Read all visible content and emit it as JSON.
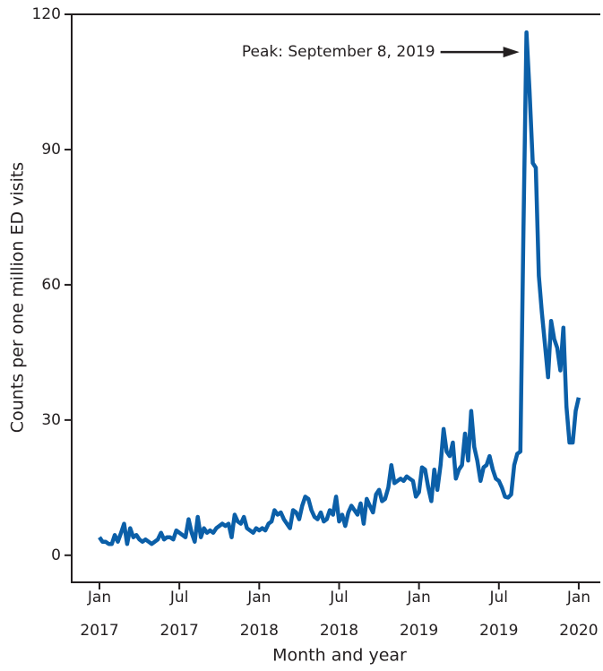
{
  "chart_data": {
    "type": "line",
    "xlabel": "Month and year",
    "ylabel": "Counts per one million ED visits",
    "annotation": "Peak: September 8, 2019",
    "xlim": [
      2016.826,
      2020.135
    ],
    "ylim": [
      -6,
      120
    ],
    "yticks": [
      0,
      30,
      60,
      90,
      120
    ],
    "xticks": [
      {
        "value": 2017,
        "label": "Jan 2017"
      },
      {
        "value": 2017.5,
        "label": "Jul 2017"
      },
      {
        "value": 2018,
        "label": "Jan 2018"
      },
      {
        "value": 2018.5,
        "label": "Jul 2018"
      },
      {
        "value": 2019,
        "label": "Jan 2019"
      },
      {
        "value": 2019.5,
        "label": "Jul 2019"
      },
      {
        "value": 2020,
        "label": "Jan 2020"
      }
    ],
    "series": [
      {
        "color": "#0b5fa8",
        "x": [
          2017,
          2017.019,
          2017.038,
          2017.058,
          2017.077,
          2017.096,
          2017.115,
          2017.135,
          2017.154,
          2017.173,
          2017.192,
          2017.212,
          2017.231,
          2017.25,
          2017.269,
          2017.288,
          2017.308,
          2017.327,
          2017.346,
          2017.365,
          2017.385,
          2017.404,
          2017.423,
          2017.442,
          2017.462,
          2017.481,
          2017.5,
          2017.519,
          2017.538,
          2017.558,
          2017.577,
          2017.596,
          2017.615,
          2017.635,
          2017.654,
          2017.673,
          2017.692,
          2017.712,
          2017.731,
          2017.75,
          2017.769,
          2017.788,
          2017.808,
          2017.827,
          2017.846,
          2017.865,
          2017.885,
          2017.904,
          2017.923,
          2017.942,
          2017.962,
          2017.981,
          2018,
          2018.019,
          2018.038,
          2018.058,
          2018.077,
          2018.096,
          2018.115,
          2018.135,
          2018.154,
          2018.173,
          2018.192,
          2018.212,
          2018.231,
          2018.25,
          2018.269,
          2018.288,
          2018.308,
          2018.327,
          2018.346,
          2018.365,
          2018.385,
          2018.404,
          2018.423,
          2018.442,
          2018.462,
          2018.481,
          2018.5,
          2018.519,
          2018.538,
          2018.558,
          2018.577,
          2018.596,
          2018.615,
          2018.635,
          2018.654,
          2018.673,
          2018.692,
          2018.712,
          2018.731,
          2018.75,
          2018.769,
          2018.788,
          2018.808,
          2018.827,
          2018.846,
          2018.865,
          2018.885,
          2018.904,
          2018.923,
          2018.942,
          2018.962,
          2018.981,
          2019,
          2019.019,
          2019.038,
          2019.058,
          2019.077,
          2019.096,
          2019.115,
          2019.135,
          2019.154,
          2019.173,
          2019.192,
          2019.212,
          2019.231,
          2019.25,
          2019.269,
          2019.288,
          2019.308,
          2019.327,
          2019.346,
          2019.365,
          2019.385,
          2019.404,
          2019.423,
          2019.442,
          2019.462,
          2019.481,
          2019.5,
          2019.519,
          2019.538,
          2019.558,
          2019.577,
          2019.596,
          2019.615,
          2019.635,
          2019.654,
          2019.673,
          2019.692,
          2019.712,
          2019.731,
          2019.75,
          2019.769,
          2019.788,
          2019.808,
          2019.827,
          2019.846,
          2019.865,
          2019.885,
          2019.904,
          2019.923,
          2019.942,
          2019.962,
          2019.981,
          2020
        ],
        "values": [
          4,
          3,
          3,
          2.5,
          2.5,
          4.5,
          3,
          5,
          7,
          2.5,
          6,
          4,
          4.5,
          3.5,
          3,
          3.5,
          3,
          2.5,
          3,
          3.5,
          5,
          3.5,
          4,
          4,
          3.5,
          5.5,
          5,
          4.5,
          4,
          8,
          5,
          3,
          8.5,
          4,
          6,
          5,
          5.5,
          5,
          6,
          6.5,
          7,
          6.5,
          7,
          4,
          9,
          7.5,
          7,
          8.5,
          6,
          5.5,
          5,
          6,
          5.5,
          6,
          5.5,
          7,
          7.5,
          10,
          9,
          9.5,
          8,
          7,
          6,
          10,
          9.5,
          8,
          11,
          13,
          12.5,
          10,
          8.5,
          8,
          9.5,
          7.5,
          8,
          10,
          9,
          13,
          7.5,
          9,
          6.5,
          9.5,
          11,
          10,
          9,
          11.5,
          7,
          12.5,
          11,
          9.5,
          13.5,
          14.5,
          12,
          12.5,
          15,
          20,
          16,
          16.5,
          17,
          16.5,
          17.5,
          17,
          16.5,
          13,
          14,
          19.5,
          19,
          15,
          12,
          19,
          14.5,
          20,
          28,
          23,
          22,
          25,
          17,
          19,
          20,
          27,
          21,
          32,
          24,
          21,
          16.5,
          19.5,
          20,
          22,
          19,
          17,
          16.5,
          15,
          13,
          12.8,
          13.5,
          20,
          22.5,
          23,
          72,
          116,
          103,
          87,
          86,
          62,
          54,
          47,
          39.5,
          52,
          48,
          46,
          41,
          50.5,
          33,
          25,
          25,
          32,
          35
        ]
      }
    ]
  }
}
